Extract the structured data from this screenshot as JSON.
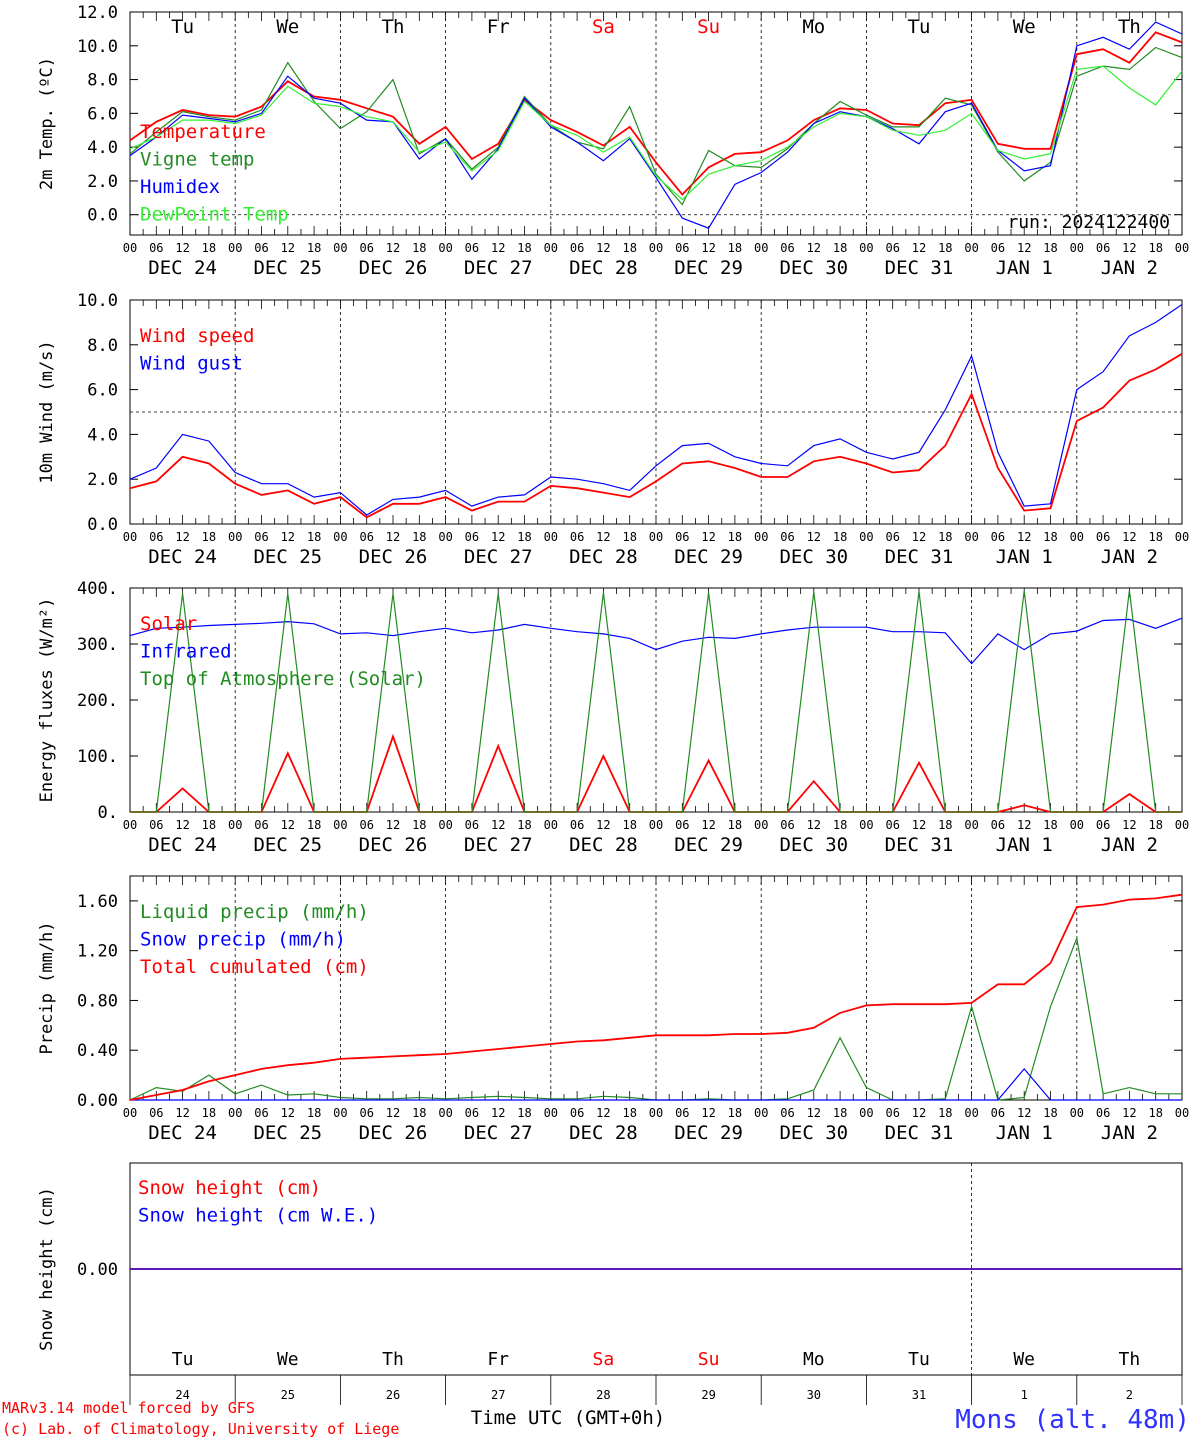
{
  "run_label": "run: 2024122400",
  "footer": {
    "model_line1": "MARv3.14 model forced by GFS",
    "model_line2": "(c) Lab. of Climatology, University of Liege",
    "xlabel": "Time UTC (GMT+0h)",
    "station": "Mons (alt. 48m)"
  },
  "colors": {
    "red": "#ff0000",
    "green": "#228b22",
    "blue": "#0000ff",
    "lightgreen": "#33ee33",
    "axis": "#000000"
  },
  "day_names": [
    "Tu",
    "We",
    "Th",
    "Fr",
    "Sa",
    "Su",
    "Mo",
    "Tu",
    "We",
    "Th"
  ],
  "weekend_days": [
    "Sa",
    "Su"
  ],
  "date_labels": [
    "DEC 24",
    "DEC 25",
    "DEC 26",
    "DEC 27",
    "DEC 28",
    "DEC 29",
    "DEC 30",
    "DEC 31",
    "JAN  1",
    "JAN  2"
  ],
  "hour_labels": [
    "00",
    "06",
    "12",
    "18"
  ],
  "last_hour_label": "00",
  "day_numbers": [
    "24",
    "25",
    "26",
    "27",
    "28",
    "29",
    "30",
    "31",
    "1",
    "2"
  ],
  "chart_data": [
    {
      "type": "line",
      "ylabel": "2m Temp. (ºC)",
      "ylim": [
        -1.2,
        12.0
      ],
      "yticks": [
        "12.0",
        "10.0",
        "8.0",
        "6.0",
        "4.0",
        "2.0",
        "0.0"
      ],
      "ytick_values": [
        12,
        10,
        8,
        6,
        4,
        2,
        0
      ],
      "hline": 0,
      "x_unit": "hours from 2024-12-24 00 UTC",
      "x": [
        0,
        6,
        12,
        18,
        24,
        30,
        36,
        42,
        48,
        54,
        60,
        66,
        72,
        78,
        84,
        90,
        96,
        102,
        108,
        114,
        120,
        126,
        132,
        138,
        144,
        150,
        156,
        162,
        168,
        174,
        180,
        186,
        192,
        198,
        204,
        210,
        216,
        222,
        228,
        234,
        240
      ],
      "series": [
        {
          "name": "Temperature",
          "color": "red",
          "values": [
            4.4,
            5.5,
            6.2,
            5.9,
            5.8,
            6.4,
            7.9,
            7.0,
            6.8,
            6.3,
            5.8,
            4.2,
            5.2,
            3.3,
            4.2,
            6.8,
            5.6,
            4.9,
            4.1,
            5.2,
            3.1,
            1.2,
            2.8,
            3.6,
            3.7,
            4.4,
            5.6,
            6.3,
            6.2,
            5.4,
            5.3,
            6.6,
            6.8,
            4.2,
            3.9,
            3.9,
            9.5,
            9.8,
            9.0,
            10.8,
            10.2
          ]
        },
        {
          "name": "Vigne temp",
          "color": "green",
          "values": [
            3.6,
            4.9,
            6.1,
            5.8,
            5.6,
            6.2,
            9.0,
            6.7,
            5.1,
            6.1,
            8.0,
            3.6,
            4.5,
            2.7,
            4.0,
            7.0,
            5.3,
            4.3,
            3.9,
            6.4,
            2.4,
            0.6,
            3.8,
            2.9,
            2.8,
            3.9,
            5.4,
            6.7,
            5.9,
            5.2,
            5.2,
            6.9,
            6.5,
            3.7,
            2.0,
            3.1,
            8.2,
            8.8,
            8.6,
            9.9,
            9.3
          ]
        },
        {
          "name": "Humidex",
          "color": "blue",
          "values": [
            3.5,
            4.6,
            5.9,
            5.7,
            5.5,
            6.0,
            8.2,
            6.9,
            6.6,
            5.6,
            5.5,
            3.3,
            4.5,
            2.1,
            3.9,
            6.9,
            5.2,
            4.3,
            3.2,
            4.5,
            2.2,
            -0.2,
            -0.8,
            1.8,
            2.5,
            3.7,
            5.4,
            6.1,
            5.8,
            5.1,
            4.2,
            6.1,
            6.6,
            3.8,
            2.6,
            2.9,
            10.0,
            10.5,
            9.8,
            11.4,
            10.7
          ]
        },
        {
          "name": "DewPoint Temp",
          "color": "lightgreen",
          "values": [
            3.9,
            4.6,
            5.6,
            5.6,
            5.4,
            5.9,
            7.6,
            6.6,
            6.4,
            5.8,
            5.5,
            3.7,
            4.3,
            2.6,
            3.8,
            6.7,
            5.3,
            4.7,
            3.7,
            4.6,
            2.3,
            0.9,
            2.4,
            2.9,
            3.2,
            4.0,
            5.2,
            6.0,
            5.8,
            5.0,
            4.7,
            5.0,
            6.0,
            3.8,
            3.3,
            3.6,
            8.6,
            8.8,
            7.5,
            6.5,
            8.5
          ]
        }
      ]
    },
    {
      "type": "line",
      "ylabel": "10m Wind (m/s)",
      "ylim": [
        0,
        10.0
      ],
      "yticks": [
        "10.0",
        "8.0",
        "6.0",
        "4.0",
        "2.0",
        "0.0"
      ],
      "ytick_values": [
        10,
        8,
        6,
        4,
        2,
        0
      ],
      "hline": 5,
      "x_unit": "hours from 2024-12-24 00 UTC",
      "x": [
        0,
        6,
        12,
        18,
        24,
        30,
        36,
        42,
        48,
        54,
        60,
        66,
        72,
        78,
        84,
        90,
        96,
        102,
        108,
        114,
        120,
        126,
        132,
        138,
        144,
        150,
        156,
        162,
        168,
        174,
        180,
        186,
        192,
        198,
        204,
        210,
        216,
        222,
        228,
        234,
        240
      ],
      "series": [
        {
          "name": "Wind speed",
          "color": "red",
          "values": [
            1.6,
            1.9,
            3.0,
            2.7,
            1.8,
            1.3,
            1.5,
            0.9,
            1.2,
            0.3,
            0.9,
            0.9,
            1.2,
            0.6,
            1.0,
            1.0,
            1.7,
            1.6,
            1.4,
            1.2,
            1.9,
            2.7,
            2.8,
            2.5,
            2.1,
            2.1,
            2.8,
            3.0,
            2.7,
            2.3,
            2.4,
            3.5,
            5.8,
            2.5,
            0.6,
            0.7,
            4.6,
            5.2,
            6.4,
            6.9,
            7.6
          ]
        },
        {
          "name": "Wind gust",
          "color": "blue",
          "values": [
            2.0,
            2.5,
            4.0,
            3.7,
            2.3,
            1.8,
            1.8,
            1.2,
            1.4,
            0.4,
            1.1,
            1.2,
            1.5,
            0.8,
            1.2,
            1.3,
            2.1,
            2.0,
            1.8,
            1.5,
            2.6,
            3.5,
            3.6,
            3.0,
            2.7,
            2.6,
            3.5,
            3.8,
            3.2,
            2.9,
            3.2,
            5.1,
            7.5,
            3.2,
            0.8,
            0.9,
            6.0,
            6.8,
            8.4,
            9.0,
            9.8
          ]
        }
      ]
    },
    {
      "type": "line",
      "ylabel": "Energy fluxes (W/m²)",
      "ylim": [
        0,
        400
      ],
      "yticks": [
        "400.",
        "300.",
        "200.",
        "100.",
        "0."
      ],
      "ytick_values": [
        400,
        300,
        200,
        100,
        0
      ],
      "x_unit": "hours from 2024-12-24 00 UTC",
      "x": [
        0,
        6,
        12,
        18,
        24,
        30,
        36,
        42,
        48,
        54,
        60,
        66,
        72,
        78,
        84,
        90,
        96,
        102,
        108,
        114,
        120,
        126,
        132,
        138,
        144,
        150,
        156,
        162,
        168,
        174,
        180,
        186,
        192,
        198,
        204,
        210,
        216,
        222,
        228,
        234,
        240
      ],
      "series": [
        {
          "name": "Solar",
          "color": "red",
          "values": [
            0,
            0,
            42,
            0,
            0,
            0,
            105,
            0,
            0,
            0,
            135,
            0,
            0,
            0,
            118,
            0,
            0,
            0,
            100,
            0,
            0,
            0,
            92,
            0,
            0,
            0,
            55,
            0,
            0,
            0,
            88,
            0,
            0,
            0,
            12,
            0,
            0,
            0,
            32,
            0,
            0
          ]
        },
        {
          "name": "Infrared",
          "color": "blue",
          "values": [
            315,
            328,
            330,
            333,
            335,
            337,
            340,
            336,
            318,
            320,
            315,
            322,
            328,
            320,
            325,
            335,
            328,
            322,
            318,
            310,
            290,
            305,
            312,
            310,
            318,
            325,
            330,
            330,
            330,
            322,
            322,
            320,
            265,
            318,
            290,
            318,
            323,
            342,
            344,
            328,
            346
          ]
        },
        {
          "name": "Top of Atmosphere (Solar)",
          "color": "green",
          "values": [
            0,
            0,
            390,
            0,
            0,
            0,
            390,
            0,
            0,
            0,
            390,
            0,
            0,
            0,
            390,
            0,
            0,
            0,
            392,
            0,
            0,
            0,
            392,
            0,
            0,
            0,
            393,
            0,
            0,
            0,
            394,
            0,
            0,
            0,
            395,
            0,
            0,
            0,
            396,
            0,
            0
          ]
        }
      ]
    },
    {
      "type": "line",
      "ylabel": "Precip (mm/h)",
      "ylim": [
        0,
        1.8
      ],
      "yticks": [
        "1.60",
        "1.20",
        "0.80",
        "0.40",
        "0.00"
      ],
      "ytick_values": [
        1.6,
        1.2,
        0.8,
        0.4,
        0
      ],
      "x_unit": "hours from 2024-12-24 00 UTC",
      "x": [
        0,
        6,
        12,
        18,
        24,
        30,
        36,
        42,
        48,
        54,
        60,
        66,
        72,
        78,
        84,
        90,
        96,
        102,
        108,
        114,
        120,
        126,
        132,
        138,
        144,
        150,
        156,
        162,
        168,
        174,
        180,
        186,
        192,
        198,
        204,
        210,
        216,
        222,
        228,
        234,
        240
      ],
      "series": [
        {
          "name": "Liquid precip (mm/h)",
          "color": "green",
          "values": [
            0.0,
            0.1,
            0.07,
            0.2,
            0.05,
            0.12,
            0.04,
            0.05,
            0.02,
            0.01,
            0.01,
            0.02,
            0.01,
            0.02,
            0.03,
            0.02,
            0.01,
            0.01,
            0.03,
            0.02,
            0.0,
            0.0,
            0.01,
            0.0,
            0.0,
            0.01,
            0.08,
            0.5,
            0.1,
            0.0,
            0.0,
            0.01,
            0.75,
            0.0,
            0.02,
            0.75,
            1.3,
            0.05,
            0.1,
            0.05,
            0.05
          ]
        },
        {
          "name": "Snow precip (mm/h)",
          "color": "blue",
          "values": [
            0,
            0,
            0,
            0,
            0,
            0,
            0,
            0,
            0,
            0,
            0,
            0,
            0,
            0,
            0,
            0,
            0,
            0,
            0,
            0,
            0,
            0,
            0,
            0,
            0,
            0,
            0,
            0,
            0,
            0,
            0,
            0,
            0,
            0,
            0.25,
            0,
            0,
            0,
            0,
            0,
            0
          ]
        },
        {
          "name": "Total cumulated (cm)",
          "color": "red",
          "values": [
            0.0,
            0.04,
            0.08,
            0.15,
            0.2,
            0.25,
            0.28,
            0.3,
            0.33,
            0.34,
            0.35,
            0.36,
            0.37,
            0.39,
            0.41,
            0.43,
            0.45,
            0.47,
            0.48,
            0.5,
            0.52,
            0.52,
            0.52,
            0.53,
            0.53,
            0.54,
            0.58,
            0.7,
            0.76,
            0.77,
            0.77,
            0.77,
            0.78,
            0.93,
            0.93,
            1.1,
            1.55,
            1.57,
            1.61,
            1.62,
            1.65
          ]
        }
      ]
    },
    {
      "type": "line",
      "ylabel": "Snow height (cm)",
      "ylim": [
        -1,
        1
      ],
      "yticks": [
        "0.00"
      ],
      "ytick_values": [
        0
      ],
      "x_unit": "hours from 2024-12-24 00 UTC",
      "x": [
        0,
        240
      ],
      "series": [
        {
          "name": "Snow height (cm)",
          "color": "red",
          "values": [
            0.0,
            0.0
          ]
        },
        {
          "name": "Snow height (cm W.E.)",
          "color": "blue",
          "values": [
            0.0,
            0.0
          ]
        }
      ]
    }
  ]
}
